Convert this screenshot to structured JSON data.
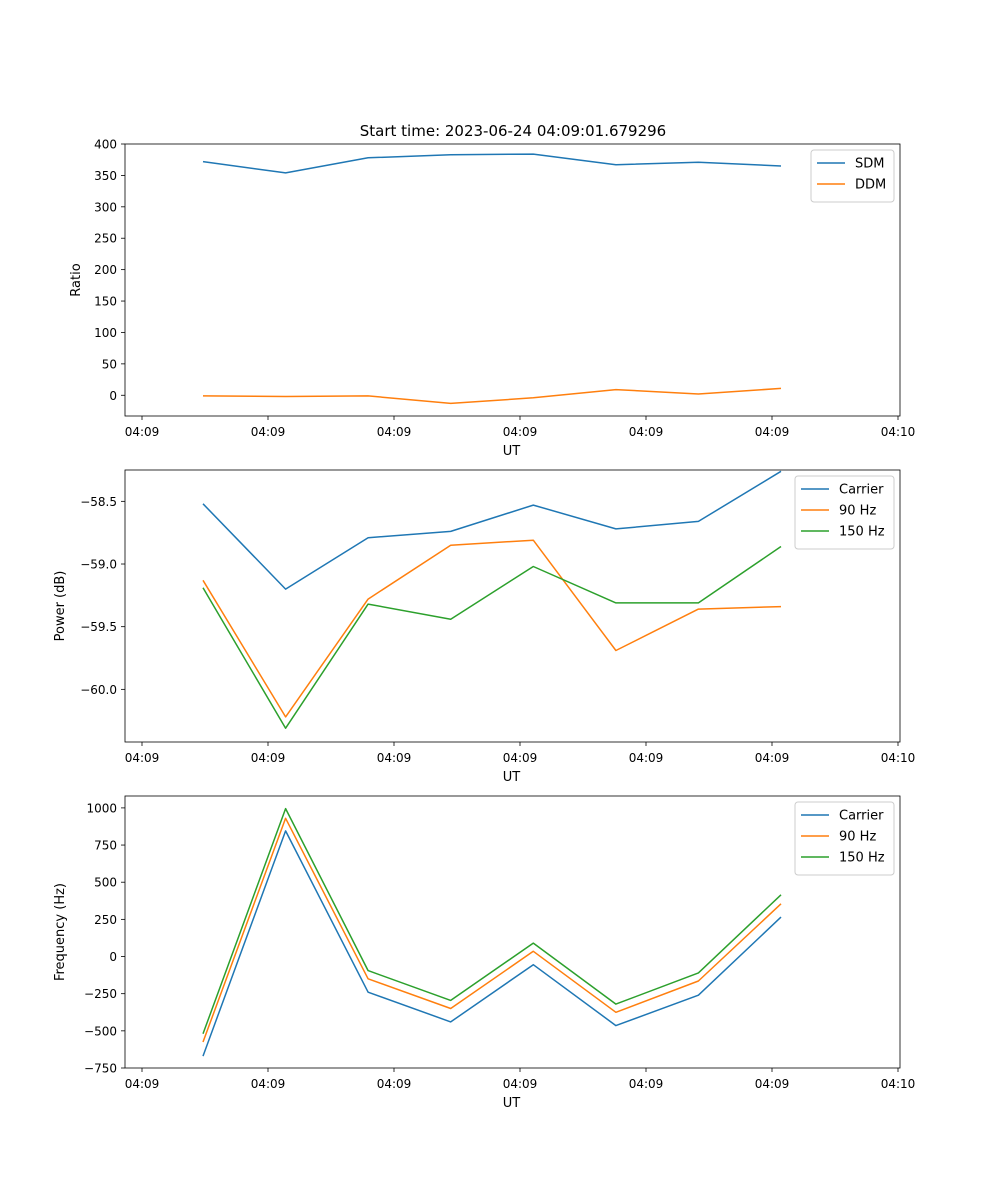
{
  "figure": {
    "title": "Start time: 2023-06-24 04:09:01.679296"
  },
  "colors": {
    "blue": "#1f77b4",
    "orange": "#ff7f0e",
    "green": "#2ca02c"
  },
  "chart_data": [
    {
      "type": "line",
      "title": "Start time: 2023-06-24 04:09:01.679296",
      "xlabel": "UT",
      "ylabel": "Ratio",
      "x": [
        1,
        2,
        3,
        4,
        5,
        6,
        7,
        8
      ],
      "xlim": [
        0.8,
        9.2
      ],
      "xticks": [
        1.0,
        2.5,
        4.0,
        5.5,
        7.0,
        8.5,
        10.0
      ],
      "xticks_pos": [
        0.0,
        1.5,
        3.0,
        4.5,
        6.0,
        7.5,
        9.0
      ],
      "xtick_labels": [
        "04:09",
        "04:09",
        "04:09",
        "04:09",
        "04:09",
        "04:09",
        "04:10"
      ],
      "ylim": [
        -33,
        400
      ],
      "yticks": [
        0,
        50,
        100,
        150,
        200,
        250,
        300,
        350,
        400
      ],
      "ytick_labels": [
        "0",
        "50",
        "100",
        "150",
        "200",
        "250",
        "300",
        "350",
        "400"
      ],
      "legend": "top-right",
      "grid": false,
      "series": [
        {
          "name": "SDM",
          "color": "#1f77b4",
          "values": [
            372,
            354,
            378,
            383,
            384,
            367,
            371,
            365
          ]
        },
        {
          "name": "DDM",
          "color": "#ff7f0e",
          "values": [
            -1,
            -2,
            -1,
            -13,
            -4,
            9,
            2,
            11
          ]
        }
      ]
    },
    {
      "type": "line",
      "xlabel": "UT",
      "ylabel": "Power (dB)",
      "x": [
        1,
        2,
        3,
        4,
        5,
        6,
        7,
        8
      ],
      "xlim": [
        0.8,
        9.2
      ],
      "xticks_pos": [
        0.0,
        1.5,
        3.0,
        4.5,
        6.0,
        7.5,
        9.0
      ],
      "xtick_labels": [
        "04:09",
        "04:09",
        "04:09",
        "04:09",
        "04:09",
        "04:09",
        "04:10"
      ],
      "ylim": [
        -60.42,
        -58.25
      ],
      "yticks": [
        -60.0,
        -59.5,
        -59.0,
        -58.5
      ],
      "ytick_labels": [
        "−60.0",
        "−59.5",
        "−59.0",
        "−58.5"
      ],
      "legend": "top-right",
      "grid": false,
      "series": [
        {
          "name": "Carrier",
          "color": "#1f77b4",
          "values": [
            -58.52,
            -59.2,
            -58.79,
            -58.74,
            -58.53,
            -58.72,
            -58.66,
            -58.26
          ]
        },
        {
          "name": "90 Hz",
          "color": "#ff7f0e",
          "values": [
            -59.13,
            -60.22,
            -59.28,
            -58.85,
            -58.81,
            -59.69,
            -59.36,
            -59.34
          ]
        },
        {
          "name": "150 Hz",
          "color": "#2ca02c",
          "values": [
            -59.19,
            -60.31,
            -59.32,
            -59.44,
            -59.02,
            -59.31,
            -59.31,
            -58.86
          ]
        }
      ]
    },
    {
      "type": "line",
      "xlabel": "UT",
      "ylabel": "Frequency (Hz)",
      "x": [
        1,
        2,
        3,
        4,
        5,
        6,
        7,
        8
      ],
      "xlim": [
        0.8,
        9.2
      ],
      "xticks_pos": [
        0.0,
        1.5,
        3.0,
        4.5,
        6.0,
        7.5,
        9.0
      ],
      "xtick_labels": [
        "04:09",
        "04:09",
        "04:09",
        "04:09",
        "04:09",
        "04:09",
        "04:10"
      ],
      "ylim": [
        -750,
        1080
      ],
      "yticks": [
        -750,
        -500,
        -250,
        0,
        250,
        500,
        750,
        1000
      ],
      "ytick_labels": [
        "−750",
        "−500",
        "−250",
        "0",
        "250",
        "500",
        "750",
        "1000"
      ],
      "legend": "top-right",
      "grid": false,
      "series": [
        {
          "name": "Carrier",
          "color": "#1f77b4",
          "values": [
            -670,
            845,
            -240,
            -440,
            -55,
            -465,
            -260,
            265
          ]
        },
        {
          "name": "90 Hz",
          "color": "#ff7f0e",
          "values": [
            -575,
            930,
            -150,
            -350,
            35,
            -375,
            -165,
            355
          ]
        },
        {
          "name": "150 Hz",
          "color": "#2ca02c",
          "values": [
            -520,
            995,
            -95,
            -295,
            90,
            -320,
            -110,
            415
          ]
        }
      ]
    }
  ]
}
